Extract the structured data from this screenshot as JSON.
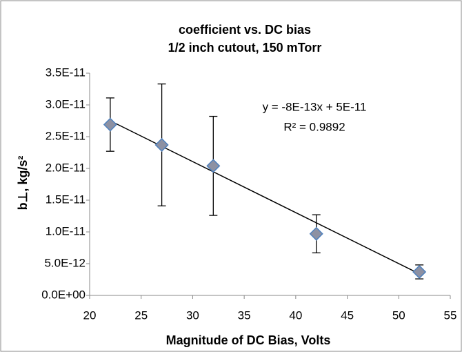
{
  "chart_data": {
    "type": "scatter",
    "title": "coefficient vs. DC bias",
    "subtitle": "1/2 inch cutout, 150 mTorr",
    "x_label": "Magnitude of DC Bias, Volts",
    "y_label": "b⊥, kg/s²",
    "x": [
      22,
      27,
      32,
      42,
      52
    ],
    "series": [
      {
        "color": "#8d91a3",
        "values": [
          2.69e-11,
          2.37e-11,
          2.04e-11,
          9.7e-12,
          3.7e-12
        ],
        "errors": [
          4.2e-12,
          9.6e-12,
          7.8e-12,
          3e-12,
          1.1e-12
        ]
      }
    ],
    "trendline": {
      "x": [
        22,
        52
      ],
      "values": [
        2.75e-11,
        3.4e-12
      ]
    },
    "annotations": [
      "y = -8E-13x + 5E-11",
      "R² = 0.9892"
    ],
    "xlim": [
      20,
      55
    ],
    "xticks": [
      20,
      25,
      30,
      35,
      40,
      45,
      50,
      55
    ],
    "ylim": [
      0,
      3.5e-11
    ],
    "yticks": [
      {
        "value": 0,
        "label": "0.0E+00"
      },
      {
        "value": 5e-12,
        "label": "5.0E-12"
      },
      {
        "value": 1e-11,
        "label": "1.0E-11"
      },
      {
        "value": 1.5e-11,
        "label": "1.5E-11"
      },
      {
        "value": 2e-11,
        "label": "2.0E-11"
      },
      {
        "value": 2.5e-11,
        "label": "2.5E-11"
      },
      {
        "value": 3e-11,
        "label": "3.0E-11"
      },
      {
        "value": 3.5e-11,
        "label": "3.5E-11"
      }
    ],
    "grid": false
  }
}
